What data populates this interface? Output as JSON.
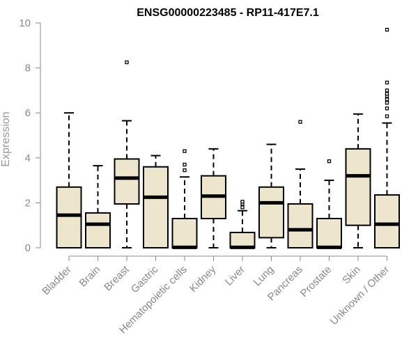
{
  "chart_data": {
    "type": "boxplot",
    "title": "ENSG00000223485 - RP11-417E7.1",
    "xlabel": "",
    "ylabel": "Expression",
    "ylim": [
      0,
      10
    ],
    "yticks": [
      0,
      2,
      4,
      6,
      8,
      10
    ],
    "grid": false,
    "legend": "none",
    "colors": {
      "box_fill": "#ede6cc",
      "stroke": "#000000",
      "axis_text": "#888888"
    },
    "categories": [
      "Bladder",
      "Brain",
      "Breast",
      "Gastric",
      "Hematopoietic cells",
      "Kidney",
      "Liver",
      "Lung",
      "Pancreas",
      "Prostate",
      "Skin",
      "Unknown / Other"
    ],
    "boxes": [
      {
        "category": "Bladder",
        "whisker_low": 0,
        "q1": 0,
        "median": 1.45,
        "q3": 2.7,
        "whisker_high": 6.0,
        "outliers": []
      },
      {
        "category": "Brain",
        "whisker_low": 0,
        "q1": 0,
        "median": 1.05,
        "q3": 1.55,
        "whisker_high": 3.65,
        "outliers": []
      },
      {
        "category": "Breast",
        "whisker_low": 0,
        "q1": 1.95,
        "median": 3.1,
        "q3": 3.95,
        "whisker_high": 5.65,
        "outliers": [
          8.25
        ]
      },
      {
        "category": "Gastric",
        "whisker_low": 0,
        "q1": 0,
        "median": 2.25,
        "q3": 3.6,
        "whisker_high": 4.1,
        "outliers": []
      },
      {
        "category": "Hematopoietic cells",
        "whisker_low": 0,
        "q1": 0,
        "median": 0.02,
        "q3": 1.3,
        "whisker_high": 3.15,
        "outliers": [
          3.45,
          3.7,
          4.3
        ]
      },
      {
        "category": "Kidney",
        "whisker_low": 0,
        "q1": 1.3,
        "median": 2.3,
        "q3": 3.2,
        "whisker_high": 4.4,
        "outliers": []
      },
      {
        "category": "Liver",
        "whisker_low": 0,
        "q1": 0,
        "median": 0.02,
        "q3": 0.68,
        "whisker_high": 1.65,
        "outliers": [
          1.8,
          1.95,
          2.05
        ]
      },
      {
        "category": "Lung",
        "whisker_low": 0,
        "q1": 0.45,
        "median": 2.0,
        "q3": 2.7,
        "whisker_high": 4.6,
        "outliers": []
      },
      {
        "category": "Pancreas",
        "whisker_low": 0,
        "q1": 0,
        "median": 0.8,
        "q3": 1.95,
        "whisker_high": 3.5,
        "outliers": [
          5.6
        ]
      },
      {
        "category": "Prostate",
        "whisker_low": 0,
        "q1": 0,
        "median": 0.02,
        "q3": 1.3,
        "whisker_high": 3.0,
        "outliers": [
          3.85
        ]
      },
      {
        "category": "Skin",
        "whisker_low": 0,
        "q1": 1.0,
        "median": 3.2,
        "q3": 4.4,
        "whisker_high": 5.95,
        "outliers": []
      },
      {
        "category": "Unknown / Other",
        "whisker_low": 0,
        "q1": 0,
        "median": 1.05,
        "q3": 2.35,
        "whisker_high": 5.55,
        "outliers": [
          5.85,
          6.2,
          6.45,
          6.6,
          6.75,
          6.85,
          7.0,
          7.35,
          9.7
        ]
      }
    ]
  }
}
